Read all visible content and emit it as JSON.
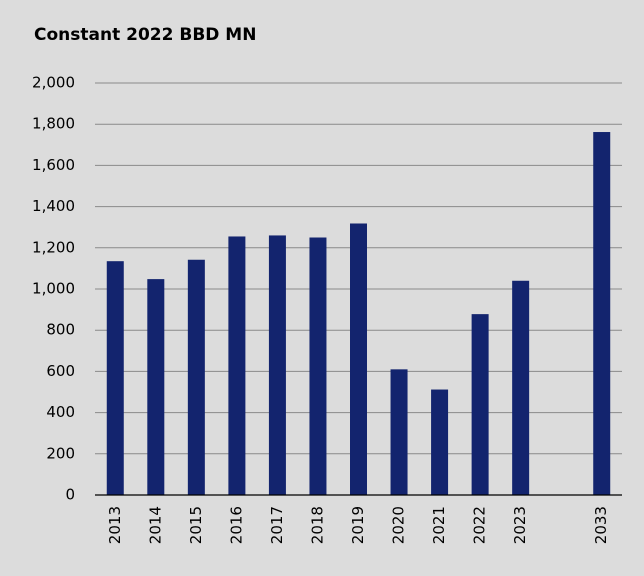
{
  "chart_data": {
    "type": "bar",
    "title": "Constant 2022 BBD MN",
    "categories": [
      "2013",
      "2014",
      "2015",
      "2016",
      "2017",
      "2018",
      "2019",
      "2020",
      "2021",
      "2022",
      "2023",
      null,
      "2033"
    ],
    "values": [
      1135,
      1048,
      1142,
      1255,
      1260,
      1250,
      1318,
      610,
      512,
      878,
      1040,
      null,
      1762
    ],
    "color": "#13246e",
    "ylim": [
      0,
      2000
    ],
    "yticks": [
      0,
      200,
      400,
      600,
      800,
      {
        "value": 1000,
        "label": "1,000"
      },
      {
        "value": 1200,
        "label": "1,200"
      },
      {
        "value": 1400,
        "label": "1,400"
      },
      {
        "value": 1600,
        "label": "1,600"
      },
      {
        "value": 1800,
        "label": "1,800"
      },
      {
        "value": 2000,
        "label": "2,000"
      }
    ],
    "grid": true
  }
}
